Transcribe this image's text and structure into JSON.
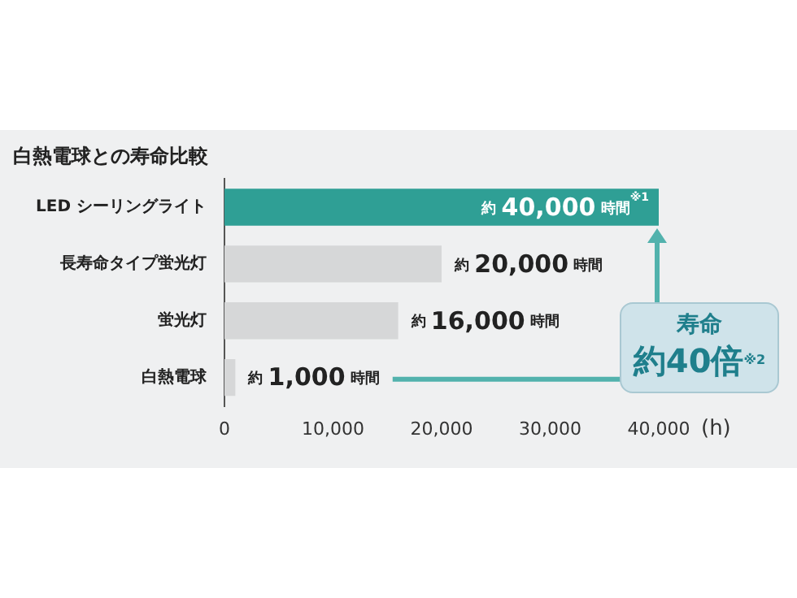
{
  "chart_data": {
    "type": "bar",
    "orientation": "horizontal",
    "title": "白熱電球との寿命比較",
    "xlabel": "(h)",
    "categories": [
      "LED シーリングライト",
      "長寿命タイプ蛍光灯",
      "蛍光灯",
      "白熱電球"
    ],
    "values": [
      40000,
      20000,
      16000,
      1000
    ],
    "colors": [
      "#2f9f95",
      "#d6d7d8",
      "#d6d7d8",
      "#d6d7d8"
    ],
    "value_labels": [
      "約 40,000 時間$^{※1}$",
      "約 20,000 時間",
      "約 16,000 時間",
      "約 1,000 時間"
    ],
    "xlim": [
      0,
      40000
    ],
    "xticks": [
      0,
      {
        "value": 10000,
        "label": "10,000"
      },
      {
        "value": 20000,
        "label": "20,000"
      },
      {
        "value": 30000,
        "label": "30,000"
      },
      {
        "value": 40000,
        "label": "40,000"
      }
    ],
    "annotations": [
      "寿命",
      "約40倍$^{※2}$"
    ]
  }
}
